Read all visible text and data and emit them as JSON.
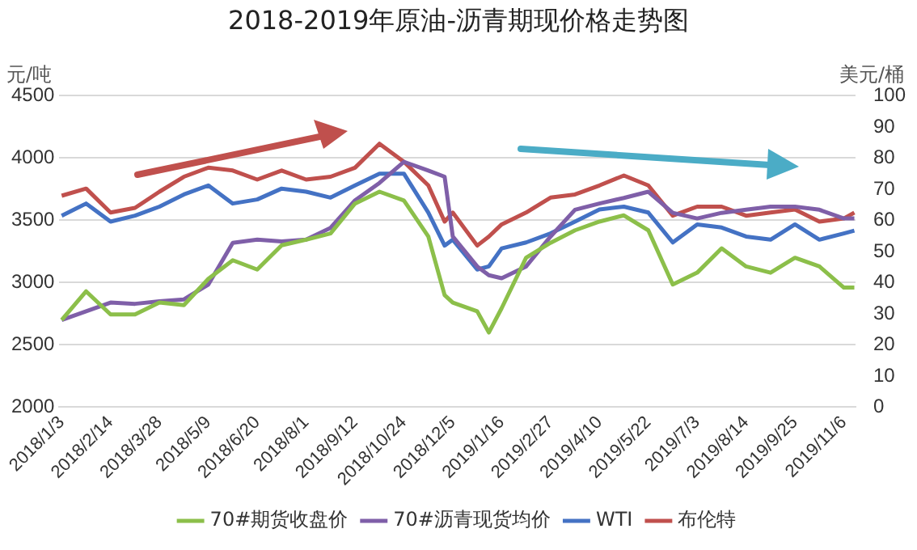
{
  "chart_data": {
    "type": "line",
    "title": "2018-2019年原油-沥青期现价格走势图",
    "ylabel": "元/吨",
    "y2label": "美元/桶",
    "x": [
      "2018-01-03",
      "2018-01-24",
      "2018-02-14",
      "2018-03-07",
      "2018-03-28",
      "2018-04-18",
      "2018-05-09",
      "2018-05-30",
      "2018-06-20",
      "2018-07-11",
      "2018-08-01",
      "2018-08-22",
      "2018-09-12",
      "2018-10-03",
      "2018-10-24",
      "2018-11-14",
      "2018-11-28",
      "2018-12-05",
      "2018-12-26",
      "2019-01-05",
      "2019-01-16",
      "2019-02-06",
      "2019-02-27",
      "2019-03-20",
      "2019-04-10",
      "2019-05-01",
      "2019-05-22",
      "2019-06-12",
      "2019-07-03",
      "2019-07-24",
      "2019-08-14",
      "2019-09-04",
      "2019-09-25",
      "2019-10-16",
      "2019-11-06",
      "2019-11-15"
    ],
    "series": [
      {
        "name": "70#期货收盘价",
        "color": "#8cbf4a",
        "axis": "y",
        "values": [
          2700,
          2930,
          2745,
          2745,
          2840,
          2820,
          3030,
          3180,
          3105,
          3300,
          3345,
          3395,
          3635,
          3730,
          3660,
          3370,
          2900,
          2840,
          2770,
          2600,
          2795,
          3200,
          3320,
          3420,
          3490,
          3540,
          3420,
          2985,
          3080,
          3275,
          3130,
          3080,
          3200,
          3130,
          2960,
          2960
        ]
      },
      {
        "name": "70#沥青现货均价",
        "color": "#7f5fa8",
        "axis": "y",
        "values": [
          2700,
          2770,
          2840,
          2830,
          2850,
          2865,
          2985,
          3320,
          3345,
          3330,
          3345,
          3440,
          3660,
          3800,
          3970,
          3900,
          3850,
          3370,
          3130,
          3060,
          3035,
          3130,
          3370,
          3585,
          3635,
          3680,
          3730,
          3560,
          3515,
          3560,
          3585,
          3610,
          3610,
          3585,
          3515,
          3515
        ]
      },
      {
        "name": "WTI",
        "color": "#4472c4",
        "axis": "y2",
        "values": [
          61.5,
          65.4,
          59.6,
          61.5,
          64.4,
          68.3,
          71.2,
          65.4,
          66.7,
          70.2,
          69.2,
          67.3,
          71.2,
          75.0,
          75.0,
          62.5,
          51.9,
          53.8,
          44.2,
          45.2,
          51.0,
          52.9,
          55.8,
          59.6,
          63.5,
          64.4,
          62.5,
          52.9,
          58.7,
          57.7,
          54.8,
          53.8,
          58.7,
          53.8,
          55.8,
          56.7
        ]
      },
      {
        "name": "布伦特",
        "color": "#c0504d",
        "axis": "y2",
        "values": [
          67.9,
          70.2,
          62.5,
          64.0,
          69.2,
          74.0,
          76.9,
          76.0,
          73.1,
          76.0,
          73.1,
          74.0,
          76.9,
          84.6,
          78.8,
          71.2,
          59.6,
          62.5,
          51.9,
          54.8,
          58.7,
          62.5,
          67.3,
          68.3,
          71.2,
          74.4,
          71.2,
          61.5,
          64.4,
          64.4,
          61.5,
          62.5,
          63.5,
          59.6,
          60.6,
          62.5
        ]
      }
    ],
    "xlim": [
      "2018-01-01",
      "2019-11-16"
    ],
    "xticks": [
      {
        "value": "2018-01-03",
        "label": "2018/1/3"
      },
      {
        "value": "2018-02-14",
        "label": "2018/2/14"
      },
      {
        "value": "2018-03-28",
        "label": "2018/3/28"
      },
      {
        "value": "2018-05-09",
        "label": "2018/5/9"
      },
      {
        "value": "2018-06-20",
        "label": "2018/6/20"
      },
      {
        "value": "2018-08-01",
        "label": "2018/8/1"
      },
      {
        "value": "2018-09-12",
        "label": "2018/9/12"
      },
      {
        "value": "2018-10-24",
        "label": "2018/10/24"
      },
      {
        "value": "2018-12-05",
        "label": "2018/12/5"
      },
      {
        "value": "2019-01-16",
        "label": "2019/1/16"
      },
      {
        "value": "2019-02-27",
        "label": "2019/2/27"
      },
      {
        "value": "2019-04-10",
        "label": "2019/4/10"
      },
      {
        "value": "2019-05-22",
        "label": "2019/5/22"
      },
      {
        "value": "2019-07-03",
        "label": "2019/7/3"
      },
      {
        "value": "2019-08-14",
        "label": "2019/8/14"
      },
      {
        "value": "2019-09-25",
        "label": "2019/9/25"
      },
      {
        "value": "2019-11-06",
        "label": "2019/11/6"
      }
    ],
    "ylim": [
      2000,
      4500
    ],
    "yticks": [
      2000,
      2500,
      3000,
      3500,
      4000,
      4500
    ],
    "y2lim": [
      0,
      100
    ],
    "y2ticks": [
      0,
      10,
      20,
      30,
      40,
      50,
      60,
      70,
      80,
      90,
      100
    ],
    "grid": "y",
    "legend": "bottom",
    "marker": "none",
    "line_style": "solid"
  }
}
